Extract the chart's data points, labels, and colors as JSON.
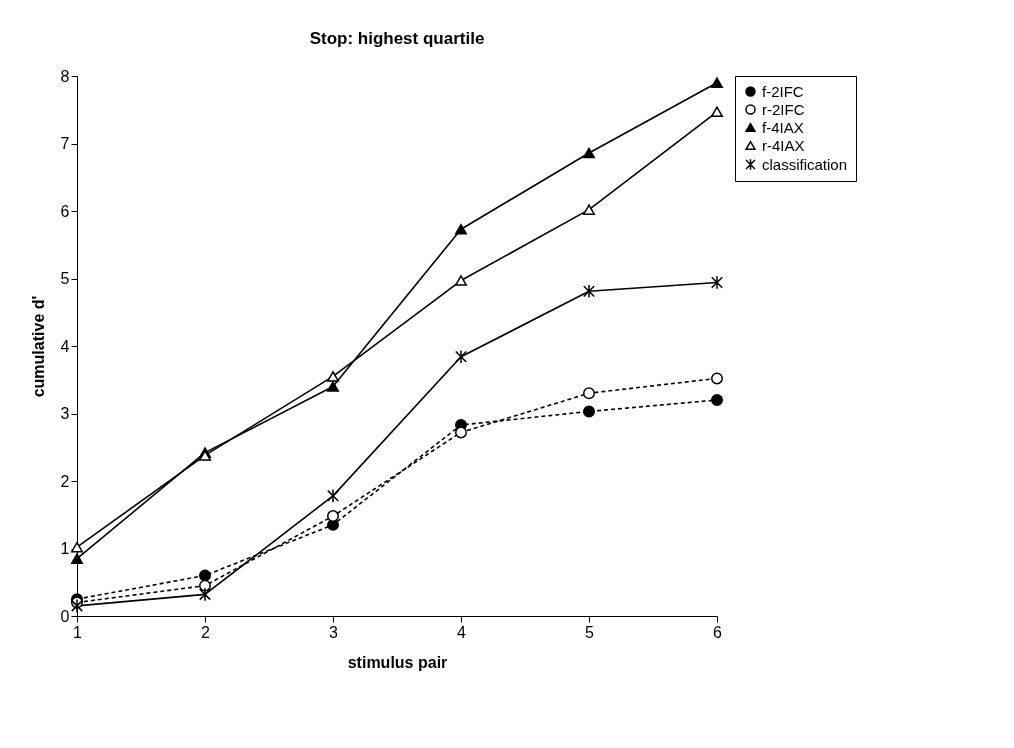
{
  "chart_data": {
    "type": "line",
    "title": "Stop: highest quartile",
    "xlabel": "stimulus pair",
    "ylabel": "cumulative d'",
    "x": [
      1,
      2,
      3,
      4,
      5,
      6
    ],
    "series": [
      {
        "name": "f-2IFC",
        "color": "#000000",
        "marker": "circle",
        "line_style": "dashed",
        "values": [
          0.25,
          0.6,
          1.35,
          2.83,
          3.03,
          3.2
        ]
      },
      {
        "name": "r-2IFC",
        "color": "#000000",
        "marker": "circle",
        "line_style": "dashed",
        "values": [
          0.2,
          0.45,
          1.48,
          2.72,
          3.3,
          3.52
        ]
      },
      {
        "name": "f-4IAX",
        "color": "#000000",
        "marker": "triangle",
        "line_style": "solid",
        "values": [
          0.85,
          2.42,
          3.4,
          5.73,
          6.86,
          7.9
        ]
      },
      {
        "name": "r-4IAX",
        "color": "#000000",
        "marker": "triangle",
        "line_style": "solid",
        "values": [
          1.02,
          2.38,
          3.55,
          4.97,
          6.02,
          7.47
        ]
      },
      {
        "name": "classification",
        "color": "#000000",
        "marker": "cross",
        "line_style": "solid",
        "values": [
          0.15,
          0.32,
          1.78,
          3.84,
          4.81,
          4.94
        ]
      }
    ],
    "xlim": [
      1,
      6
    ],
    "xticks": [
      1,
      2,
      3,
      4,
      5,
      6
    ],
    "ylim": [
      0,
      8
    ],
    "yticks": [
      0,
      1,
      2,
      3,
      4,
      5,
      6,
      7,
      8
    ],
    "grid": false,
    "legend": "right"
  }
}
